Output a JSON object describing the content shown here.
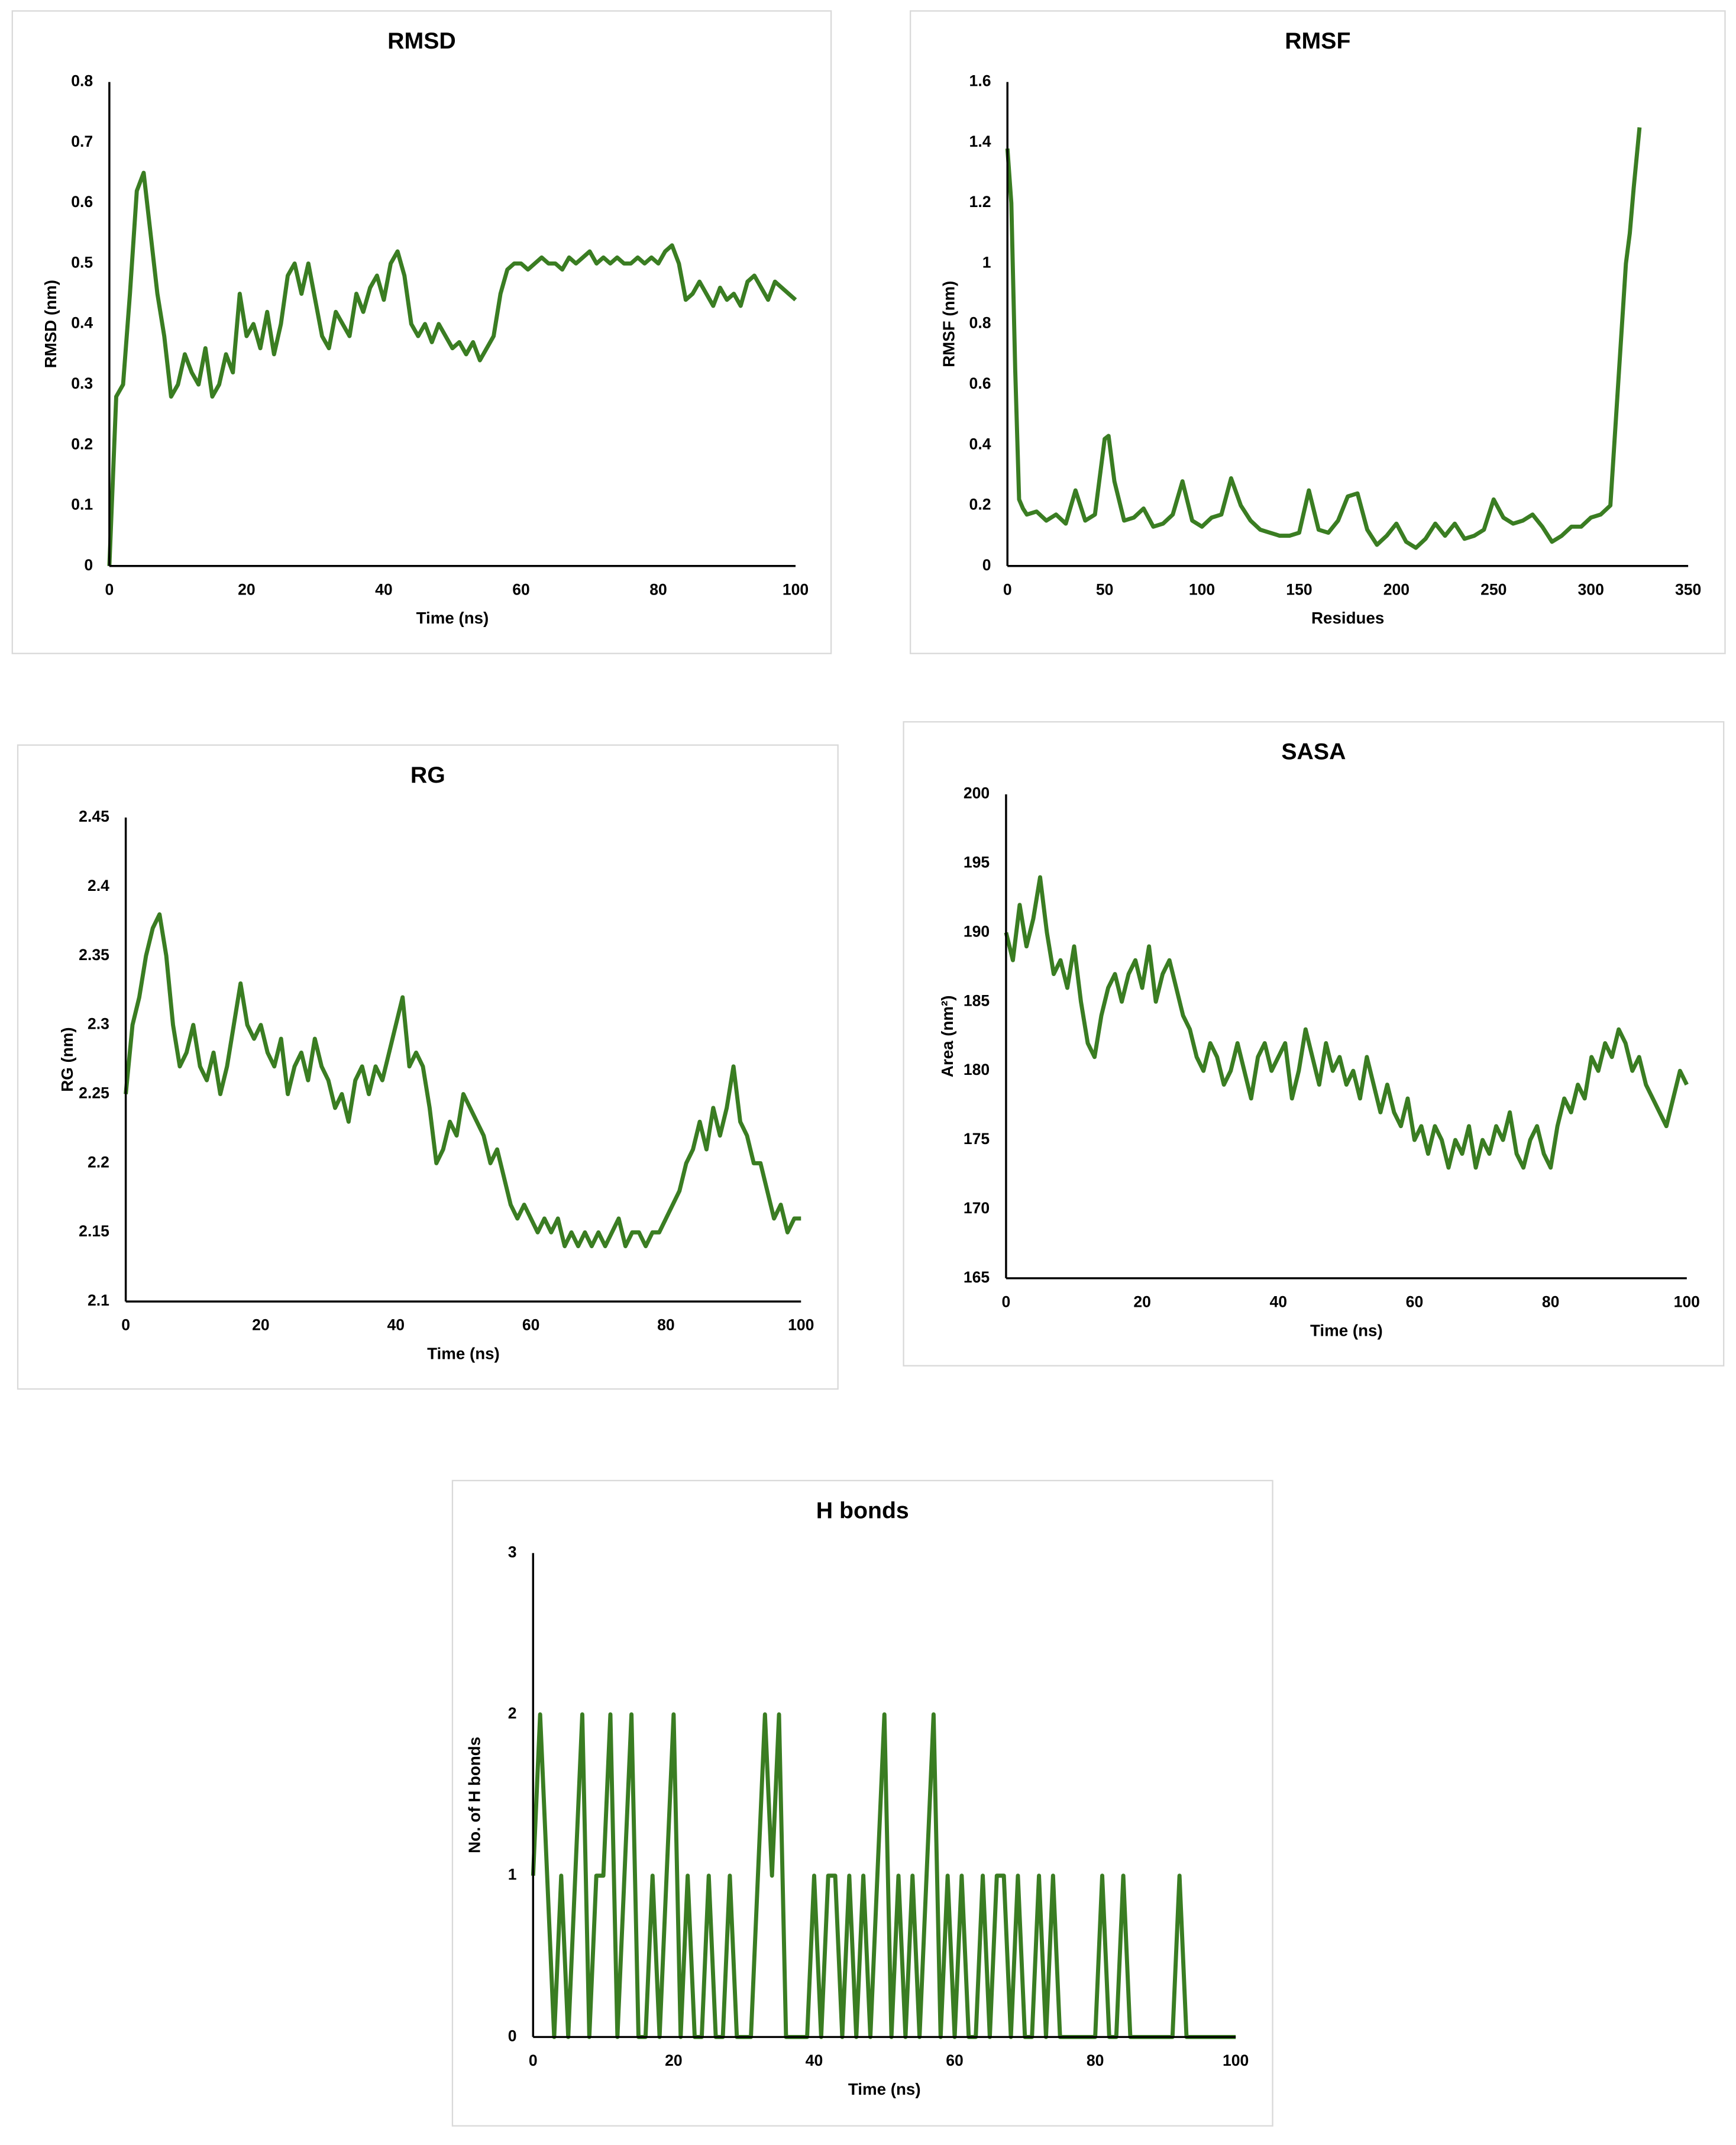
{
  "chart_data": [
    {
      "type": "line",
      "title": "RMSD",
      "x_label": "Time (ns)",
      "y_label": "RMSD (nm)",
      "color": "#3a7d22",
      "xlim": [
        0,
        100
      ],
      "xticks": [
        0,
        20,
        40,
        60,
        80,
        100
      ],
      "ylim": [
        0,
        0.8
      ],
      "yticks": [
        0,
        0.1,
        0.2,
        0.3,
        0.4,
        0.5,
        0.6,
        0.7,
        0.8
      ],
      "x": [
        0,
        1,
        2,
        3,
        4,
        5,
        6,
        7,
        8,
        9,
        10,
        11,
        12,
        13,
        14,
        15,
        16,
        17,
        18,
        19,
        20,
        21,
        22,
        23,
        24,
        25,
        26,
        27,
        28,
        29,
        30,
        31,
        32,
        33,
        34,
        35,
        36,
        37,
        38,
        39,
        40,
        41,
        42,
        43,
        44,
        45,
        46,
        47,
        48,
        49,
        50,
        51,
        52,
        53,
        54,
        55,
        56,
        57,
        58,
        59,
        60,
        61,
        62,
        63,
        64,
        65,
        66,
        67,
        68,
        69,
        70,
        71,
        72,
        73,
        74,
        75,
        76,
        77,
        78,
        79,
        80,
        81,
        82,
        83,
        84,
        85,
        86,
        87,
        88,
        89,
        90,
        91,
        92,
        93,
        94,
        95,
        96,
        97,
        98,
        99,
        100
      ],
      "values": [
        0,
        0.28,
        0.3,
        0.45,
        0.62,
        0.65,
        0.55,
        0.45,
        0.38,
        0.28,
        0.3,
        0.35,
        0.32,
        0.3,
        0.36,
        0.28,
        0.3,
        0.35,
        0.32,
        0.45,
        0.38,
        0.4,
        0.36,
        0.42,
        0.35,
        0.4,
        0.48,
        0.5,
        0.45,
        0.5,
        0.44,
        0.38,
        0.36,
        0.42,
        0.4,
        0.38,
        0.45,
        0.42,
        0.46,
        0.48,
        0.44,
        0.5,
        0.52,
        0.48,
        0.4,
        0.38,
        0.4,
        0.37,
        0.4,
        0.38,
        0.36,
        0.37,
        0.35,
        0.37,
        0.34,
        0.36,
        0.38,
        0.45,
        0.49,
        0.5,
        0.5,
        0.49,
        0.5,
        0.51,
        0.5,
        0.5,
        0.49,
        0.51,
        0.5,
        0.51,
        0.52,
        0.5,
        0.51,
        0.5,
        0.51,
        0.5,
        0.5,
        0.51,
        0.5,
        0.51,
        0.5,
        0.52,
        0.53,
        0.5,
        0.44,
        0.45,
        0.47,
        0.45,
        0.43,
        0.46,
        0.44,
        0.45,
        0.43,
        0.47,
        0.48,
        0.46,
        0.44,
        0.47,
        0.46,
        0.45,
        0.44
      ]
    },
    {
      "type": "line",
      "title": "RMSF",
      "x_label": "Residues",
      "y_label": "RMSF (nm)",
      "color": "#3a7d22",
      "xlim": [
        0,
        350
      ],
      "xticks": [
        0,
        50,
        100,
        150,
        200,
        250,
        300,
        350
      ],
      "ylim": [
        0,
        1.6
      ],
      "yticks": [
        0,
        0.2,
        0.4,
        0.6,
        0.8,
        1,
        1.2,
        1.4,
        1.6
      ],
      "x": [
        0,
        2,
        4,
        6,
        8,
        10,
        15,
        20,
        25,
        30,
        35,
        40,
        45,
        50,
        52,
        55,
        60,
        65,
        70,
        75,
        80,
        85,
        90,
        95,
        100,
        105,
        110,
        115,
        120,
        125,
        130,
        135,
        140,
        145,
        150,
        155,
        160,
        165,
        170,
        175,
        180,
        185,
        190,
        195,
        200,
        205,
        210,
        215,
        220,
        225,
        230,
        235,
        240,
        245,
        250,
        255,
        260,
        265,
        270,
        275,
        280,
        285,
        290,
        295,
        300,
        305,
        310,
        315,
        318,
        320,
        322,
        325
      ],
      "values": [
        1.38,
        1.2,
        0.65,
        0.22,
        0.19,
        0.17,
        0.18,
        0.15,
        0.17,
        0.14,
        0.25,
        0.15,
        0.17,
        0.42,
        0.43,
        0.28,
        0.15,
        0.16,
        0.19,
        0.13,
        0.14,
        0.17,
        0.28,
        0.15,
        0.13,
        0.16,
        0.17,
        0.29,
        0.2,
        0.15,
        0.12,
        0.11,
        0.1,
        0.1,
        0.11,
        0.25,
        0.12,
        0.11,
        0.15,
        0.23,
        0.24,
        0.12,
        0.07,
        0.1,
        0.14,
        0.08,
        0.06,
        0.09,
        0.14,
        0.1,
        0.14,
        0.09,
        0.1,
        0.12,
        0.22,
        0.16,
        0.14,
        0.15,
        0.17,
        0.13,
        0.08,
        0.1,
        0.13,
        0.13,
        0.16,
        0.17,
        0.2,
        0.7,
        1,
        1.1,
        1.25,
        1.45
      ]
    },
    {
      "type": "line",
      "title": "RG",
      "x_label": "Time (ns)",
      "y_label": "RG (nm)",
      "color": "#3a7d22",
      "xlim": [
        0,
        100
      ],
      "xticks": [
        0,
        20,
        40,
        60,
        80,
        100
      ],
      "ylim": [
        2.1,
        2.45
      ],
      "yticks": [
        2.1,
        2.15,
        2.2,
        2.25,
        2.3,
        2.35,
        2.4,
        2.45
      ],
      "x": [
        0,
        1,
        2,
        3,
        4,
        5,
        6,
        7,
        8,
        9,
        10,
        11,
        12,
        13,
        14,
        15,
        16,
        17,
        18,
        19,
        20,
        21,
        22,
        23,
        24,
        25,
        26,
        27,
        28,
        29,
        30,
        31,
        32,
        33,
        34,
        35,
        36,
        37,
        38,
        39,
        40,
        41,
        42,
        43,
        44,
        45,
        46,
        47,
        48,
        49,
        50,
        51,
        52,
        53,
        54,
        55,
        56,
        57,
        58,
        59,
        60,
        61,
        62,
        63,
        64,
        65,
        66,
        67,
        68,
        69,
        70,
        71,
        72,
        73,
        74,
        75,
        76,
        77,
        78,
        79,
        80,
        81,
        82,
        83,
        84,
        85,
        86,
        87,
        88,
        89,
        90,
        91,
        92,
        93,
        94,
        95,
        96,
        97,
        98,
        99,
        100
      ],
      "values": [
        2.25,
        2.3,
        2.32,
        2.35,
        2.37,
        2.38,
        2.35,
        2.3,
        2.27,
        2.28,
        2.3,
        2.27,
        2.26,
        2.28,
        2.25,
        2.27,
        2.3,
        2.33,
        2.3,
        2.29,
        2.3,
        2.28,
        2.27,
        2.29,
        2.25,
        2.27,
        2.28,
        2.26,
        2.29,
        2.27,
        2.26,
        2.24,
        2.25,
        2.23,
        2.26,
        2.27,
        2.25,
        2.27,
        2.26,
        2.28,
        2.3,
        2.32,
        2.27,
        2.28,
        2.27,
        2.24,
        2.2,
        2.21,
        2.23,
        2.22,
        2.25,
        2.24,
        2.23,
        2.22,
        2.2,
        2.21,
        2.19,
        2.17,
        2.16,
        2.17,
        2.16,
        2.15,
        2.16,
        2.15,
        2.16,
        2.14,
        2.15,
        2.14,
        2.15,
        2.14,
        2.15,
        2.14,
        2.15,
        2.16,
        2.14,
        2.15,
        2.15,
        2.14,
        2.15,
        2.15,
        2.16,
        2.17,
        2.18,
        2.2,
        2.21,
        2.23,
        2.21,
        2.24,
        2.22,
        2.24,
        2.27,
        2.23,
        2.22,
        2.2,
        2.2,
        2.18,
        2.16,
        2.17,
        2.15,
        2.16,
        2.16
      ]
    },
    {
      "type": "line",
      "title": "SASA",
      "x_label": "Time (ns)",
      "y_label": "Area (nm²)",
      "color": "#3a7d22",
      "xlim": [
        0,
        100
      ],
      "xticks": [
        0,
        20,
        40,
        60,
        80,
        100
      ],
      "ylim": [
        165,
        200
      ],
      "yticks": [
        165,
        170,
        175,
        180,
        185,
        190,
        195,
        200
      ],
      "x": [
        0,
        1,
        2,
        3,
        4,
        5,
        6,
        7,
        8,
        9,
        10,
        11,
        12,
        13,
        14,
        15,
        16,
        17,
        18,
        19,
        20,
        21,
        22,
        23,
        24,
        25,
        26,
        27,
        28,
        29,
        30,
        31,
        32,
        33,
        34,
        35,
        36,
        37,
        38,
        39,
        40,
        41,
        42,
        43,
        44,
        45,
        46,
        47,
        48,
        49,
        50,
        51,
        52,
        53,
        54,
        55,
        56,
        57,
        58,
        59,
        60,
        61,
        62,
        63,
        64,
        65,
        66,
        67,
        68,
        69,
        70,
        71,
        72,
        73,
        74,
        75,
        76,
        77,
        78,
        79,
        80,
        81,
        82,
        83,
        84,
        85,
        86,
        87,
        88,
        89,
        90,
        91,
        92,
        93,
        94,
        95,
        96,
        97,
        98,
        99,
        100
      ],
      "values": [
        190,
        188,
        192,
        189,
        191,
        194,
        190,
        187,
        188,
        186,
        189,
        185,
        182,
        181,
        184,
        186,
        187,
        185,
        187,
        188,
        186,
        189,
        185,
        187,
        188,
        186,
        184,
        183,
        181,
        180,
        182,
        181,
        179,
        180,
        182,
        180,
        178,
        181,
        182,
        180,
        181,
        182,
        178,
        180,
        183,
        181,
        179,
        182,
        180,
        181,
        179,
        180,
        178,
        181,
        179,
        177,
        179,
        177,
        176,
        178,
        175,
        176,
        174,
        176,
        175,
        173,
        175,
        174,
        176,
        173,
        175,
        174,
        176,
        175,
        177,
        174,
        173,
        175,
        176,
        174,
        173,
        176,
        178,
        177,
        179,
        178,
        181,
        180,
        182,
        181,
        183,
        182,
        180,
        181,
        179,
        178,
        177,
        176,
        178,
        180,
        179
      ]
    },
    {
      "type": "line",
      "title": "H bonds",
      "x_label": "Time (ns)",
      "y_label": "No. of H bonds",
      "color": "#3a7d22",
      "xlim": [
        0,
        100
      ],
      "xticks": [
        0,
        20,
        40,
        60,
        80,
        100
      ],
      "ylim": [
        0,
        3
      ],
      "yticks": [
        0,
        1,
        2,
        3
      ],
      "x": [
        0,
        1,
        2,
        3,
        4,
        5,
        6,
        7,
        8,
        9,
        10,
        11,
        12,
        13,
        14,
        15,
        16,
        17,
        18,
        19,
        20,
        21,
        22,
        23,
        24,
        25,
        26,
        27,
        28,
        29,
        30,
        31,
        32,
        33,
        34,
        35,
        36,
        37,
        38,
        39,
        40,
        41,
        42,
        43,
        44,
        45,
        46,
        47,
        48,
        49,
        50,
        51,
        52,
        53,
        54,
        55,
        56,
        57,
        58,
        59,
        60,
        61,
        62,
        63,
        64,
        65,
        66,
        67,
        68,
        69,
        70,
        71,
        72,
        73,
        74,
        75,
        76,
        77,
        78,
        79,
        80,
        81,
        82,
        83,
        84,
        85,
        86,
        87,
        88,
        89,
        90,
        91,
        92,
        93,
        94,
        95,
        96,
        97,
        98,
        99,
        100
      ],
      "values": [
        1,
        2,
        1,
        0,
        1,
        0,
        1,
        2,
        0,
        1,
        1,
        2,
        0,
        1,
        2,
        0,
        0,
        1,
        0,
        1,
        2,
        0,
        1,
        0,
        0,
        1,
        0,
        0,
        1,
        0,
        0,
        0,
        1,
        2,
        1,
        2,
        0,
        0,
        0,
        0,
        1,
        0,
        1,
        1,
        0,
        1,
        0,
        1,
        0,
        1,
        2,
        0,
        1,
        0,
        1,
        0,
        1,
        2,
        0,
        1,
        0,
        1,
        0,
        0,
        1,
        0,
        1,
        1,
        0,
        1,
        0,
        0,
        1,
        0,
        1,
        0,
        0,
        0,
        0,
        0,
        0,
        1,
        0,
        0,
        1,
        0,
        0,
        0,
        0,
        0,
        0,
        0,
        1,
        0,
        0,
        0,
        0,
        0,
        0,
        0,
        0
      ]
    }
  ]
}
